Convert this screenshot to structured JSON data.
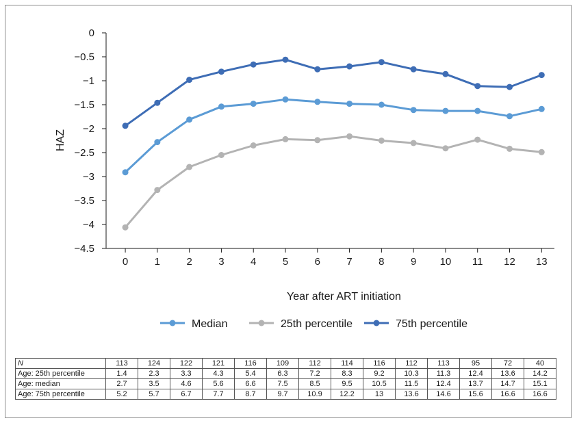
{
  "chart_data": {
    "type": "line",
    "title": "",
    "xlabel": "Year after ART initiation",
    "ylabel": "HAZ",
    "x": [
      0,
      1,
      2,
      3,
      4,
      5,
      6,
      7,
      8,
      9,
      10,
      11,
      12,
      13
    ],
    "x_tick_labels": [
      "0",
      "1",
      "2",
      "3",
      "4",
      "5",
      "6",
      "7",
      "8",
      "9",
      "10",
      "11",
      "12",
      "13"
    ],
    "y_tick_labels": [
      "0",
      "−0.5",
      "−1",
      "−1.5",
      "−2",
      "−2.5",
      "−3",
      "−3.5",
      "−4",
      "−4.5"
    ],
    "y_ticks": [
      0,
      -0.5,
      -1,
      -1.5,
      -2,
      -2.5,
      -3,
      -3.5,
      -4,
      -4.5
    ],
    "ylim": [
      -4.5,
      0
    ],
    "xlim": [
      -0.6,
      13.4
    ],
    "grid": false,
    "legend_position": "bottom",
    "series": [
      {
        "name": "Median",
        "color": "#5b9bd5",
        "values": [
          -2.91,
          -2.28,
          -1.81,
          -1.54,
          -1.48,
          -1.39,
          -1.44,
          -1.48,
          -1.5,
          -1.61,
          -1.63,
          -1.63,
          -1.74,
          -1.59
        ]
      },
      {
        "name": "25th percentile",
        "color": "#b3b3b3",
        "values": [
          -4.06,
          -3.28,
          -2.8,
          -2.55,
          -2.35,
          -2.22,
          -2.24,
          -2.16,
          -2.25,
          -2.3,
          -2.41,
          -2.23,
          -2.42,
          -2.49
        ]
      },
      {
        "name": "75th percentile",
        "color": "#3e6db5",
        "values": [
          -1.94,
          -1.46,
          -0.98,
          -0.81,
          -0.66,
          -0.56,
          -0.76,
          -0.7,
          -0.61,
          -0.76,
          -0.86,
          -1.11,
          -1.13,
          -0.88
        ]
      }
    ],
    "table": {
      "rows": [
        {
          "label": "N",
          "values": [
            "113",
            "124",
            "122",
            "121",
            "116",
            "109",
            "112",
            "114",
            "116",
            "112",
            "113",
            "95",
            "72",
            "40"
          ]
        },
        {
          "label": "Age: 25th percentile",
          "values": [
            "1.4",
            "2.3",
            "3.3",
            "4.3",
            "5.4",
            "6.3",
            "7.2",
            "8.3",
            "9.2",
            "10.3",
            "11.3",
            "12.4",
            "13.6",
            "14.2"
          ]
        },
        {
          "label": "Age: median",
          "values": [
            "2.7",
            "3.5",
            "4.6",
            "5.6",
            "6.6",
            "7.5",
            "8.5",
            "9.5",
            "10.5",
            "11.5",
            "12.4",
            "13.7",
            "14.7",
            "15.1"
          ]
        },
        {
          "label": "Age: 75th percentile",
          "values": [
            "5.2",
            "5.7",
            "6.7",
            "7.7",
            "8.7",
            "9.7",
            "10.9",
            "12.2",
            "13",
            "13.6",
            "14.6",
            "15.6",
            "16.6",
            "16.6"
          ]
        }
      ]
    }
  }
}
